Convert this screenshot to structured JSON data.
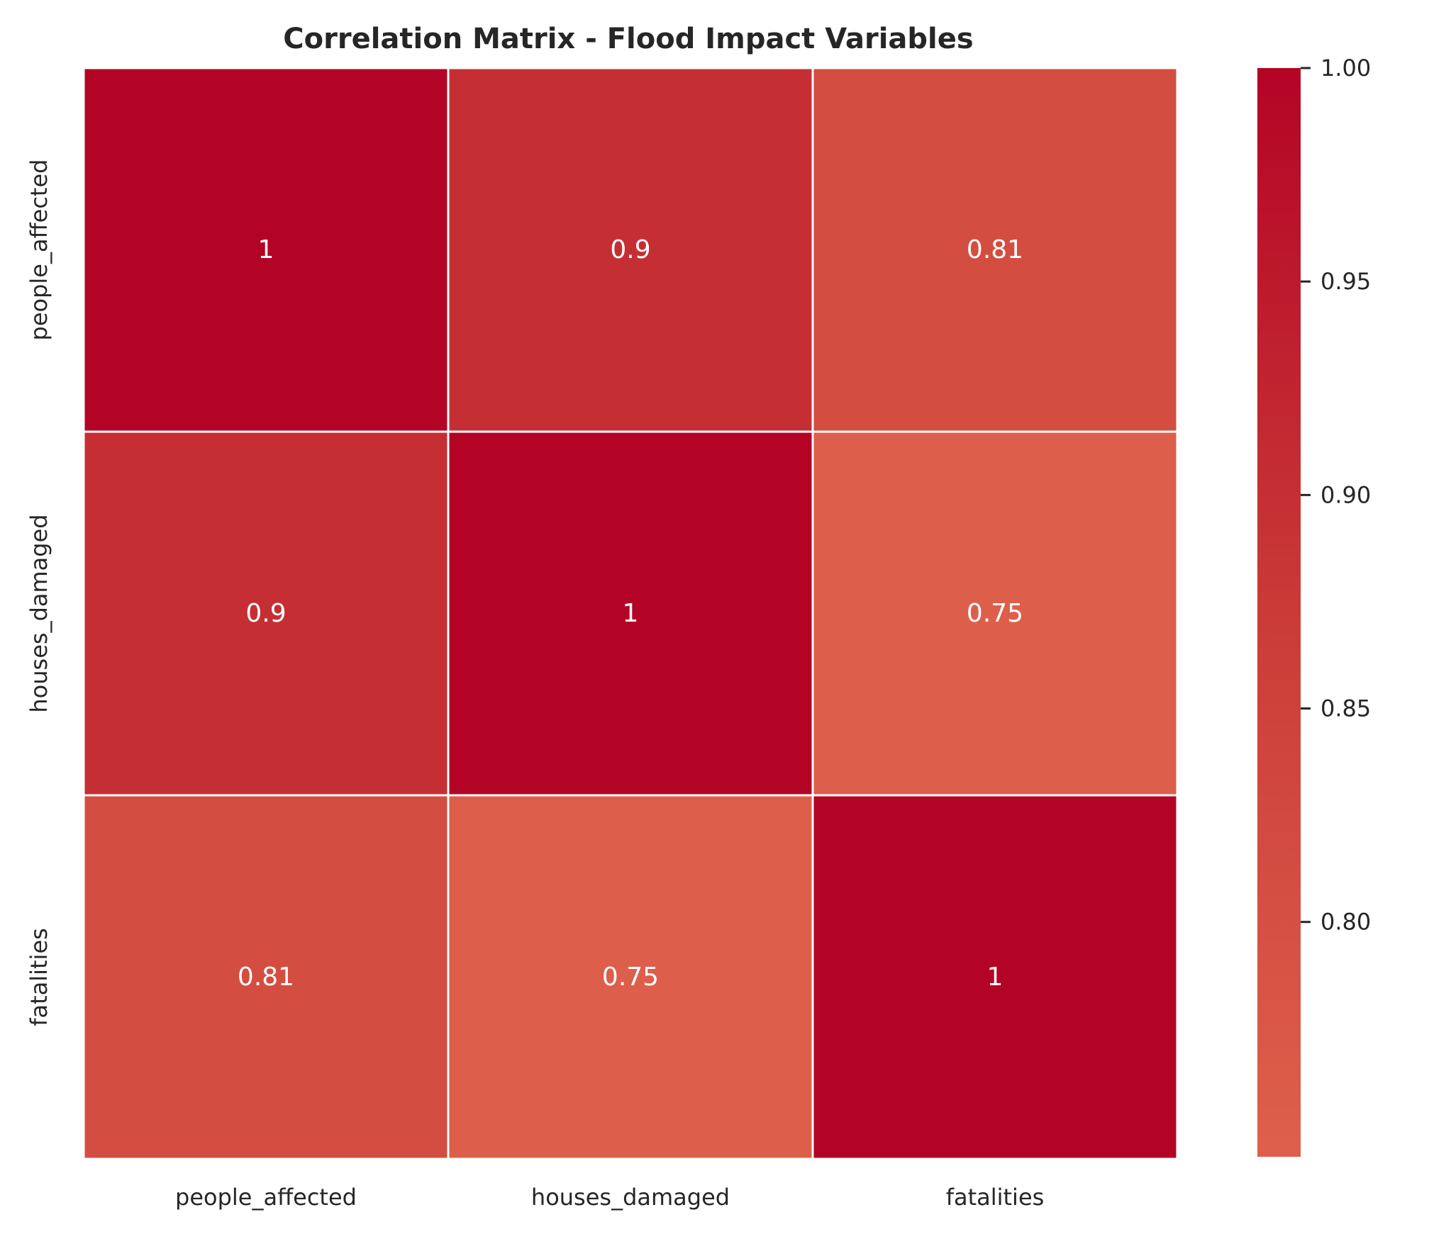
{
  "chart_data": {
    "type": "heatmap",
    "title": "Correlation Matrix - Flood Impact Variables",
    "x_labels": [
      "people_affected",
      "houses_damaged",
      "fatalities"
    ],
    "y_labels": [
      "people_affected",
      "houses_damaged",
      "fatalities"
    ],
    "values": [
      [
        1.0,
        0.9,
        0.81
      ],
      [
        0.9,
        1.0,
        0.75
      ],
      [
        0.81,
        0.75,
        1.0
      ]
    ],
    "cell_labels": [
      [
        "1",
        "0.9",
        "0.81"
      ],
      [
        "0.9",
        "1",
        "0.75"
      ],
      [
        "0.81",
        "0.75",
        "1"
      ]
    ],
    "colorbar": {
      "range": [
        0.745,
        1.0
      ],
      "ticks": [
        0.8,
        0.85,
        0.9,
        0.95,
        1.0
      ],
      "tick_labels": [
        "0.80",
        "0.85",
        "0.90",
        "0.95",
        "1.00"
      ],
      "colors": [
        "#de604c",
        "#b40426"
      ]
    }
  }
}
